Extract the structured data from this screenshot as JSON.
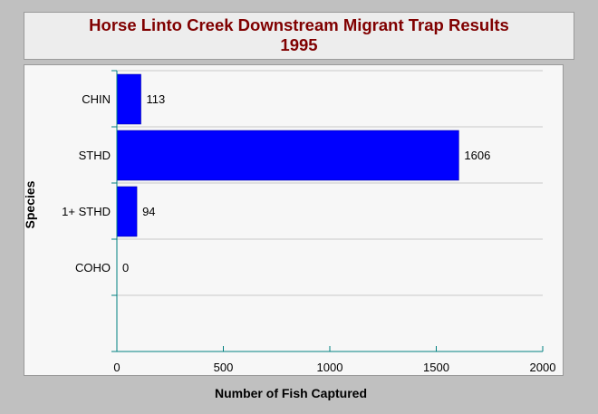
{
  "chart_data": {
    "type": "bar",
    "orientation": "horizontal",
    "title": "Horse Linto Creek Downstream Migrant Trap Results",
    "subtitle": "1995",
    "xlabel": "Number of Fish Captured",
    "ylabel": "Species",
    "categories": [
      "CHIN",
      "STHD",
      "1+ STHD",
      "COHO"
    ],
    "values": [
      113,
      1606,
      94,
      0
    ],
    "data_labels": [
      "113",
      "1606",
      "94",
      "0"
    ],
    "xlim": [
      0,
      2000
    ],
    "x_ticks": [
      "0",
      "500",
      "1000",
      "1500",
      "2000"
    ],
    "grid": true,
    "bar_color": "#0000ff",
    "axis_color": "#008080",
    "title_color": "#800000"
  }
}
